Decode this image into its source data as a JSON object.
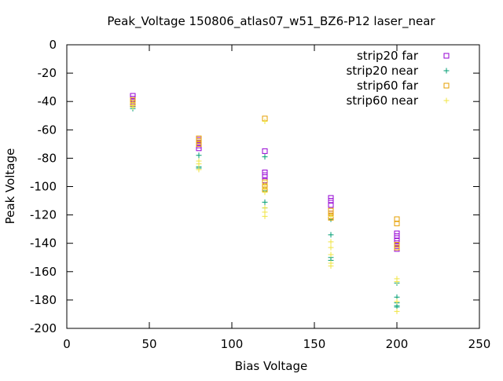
{
  "chart_data": {
    "type": "scatter",
    "title": "Peak_Voltage 150806_atlas07_w51_BZ6-P12 laser_near",
    "xlabel": "Bias Voltage",
    "ylabel": "Peak Voltage",
    "xlim": [
      0,
      250
    ],
    "ylim": [
      -200,
      0
    ],
    "x_ticks": [
      0,
      50,
      100,
      150,
      200,
      250
    ],
    "y_ticks": [
      0,
      -20,
      -40,
      -60,
      -80,
      -100,
      -120,
      -140,
      -160,
      -180,
      -200
    ],
    "grid": false,
    "legend_position": "top-right",
    "series": [
      {
        "name": "strip20 far",
        "marker": "square-icon",
        "color": "#9400d3",
        "points": [
          [
            40,
            -36
          ],
          [
            40,
            -38
          ],
          [
            40,
            -40
          ],
          [
            40,
            -42
          ],
          [
            80,
            -67
          ],
          [
            80,
            -69
          ],
          [
            80,
            -71
          ],
          [
            80,
            -73
          ],
          [
            120,
            -75
          ],
          [
            120,
            -90
          ],
          [
            120,
            -92
          ],
          [
            120,
            -96
          ],
          [
            120,
            -99
          ],
          [
            160,
            -108
          ],
          [
            160,
            -110
          ],
          [
            160,
            -113
          ],
          [
            160,
            -119
          ],
          [
            160,
            -121
          ],
          [
            200,
            -133
          ],
          [
            200,
            -135
          ],
          [
            200,
            -138
          ],
          [
            200,
            -140
          ],
          [
            200,
            -142
          ],
          [
            200,
            -144
          ]
        ]
      },
      {
        "name": "strip20 near",
        "marker": "plus-icon",
        "color": "#009e73",
        "points": [
          [
            40,
            -43
          ],
          [
            40,
            -44
          ],
          [
            40,
            -45
          ],
          [
            80,
            -78
          ],
          [
            80,
            -86
          ],
          [
            80,
            -87
          ],
          [
            120,
            -79
          ],
          [
            120,
            -103
          ],
          [
            120,
            -111
          ],
          [
            120,
            -115
          ],
          [
            160,
            -123
          ],
          [
            160,
            -134
          ],
          [
            160,
            -150
          ],
          [
            160,
            -152
          ],
          [
            200,
            -168
          ],
          [
            200,
            -178
          ],
          [
            200,
            -182
          ],
          [
            200,
            -184
          ],
          [
            200,
            -185
          ]
        ]
      },
      {
        "name": "strip60 far",
        "marker": "square-icon",
        "color": "#e69f00",
        "points": [
          [
            40,
            -39
          ],
          [
            40,
            -41
          ],
          [
            80,
            -66
          ],
          [
            80,
            -68
          ],
          [
            80,
            -70
          ],
          [
            120,
            -52
          ],
          [
            120,
            -97
          ],
          [
            120,
            -100
          ],
          [
            120,
            -102
          ],
          [
            160,
            -117
          ],
          [
            160,
            -119
          ],
          [
            160,
            -121
          ],
          [
            160,
            -122
          ],
          [
            200,
            -123
          ],
          [
            200,
            -126
          ],
          [
            200,
            -141
          ],
          [
            200,
            -143
          ]
        ]
      },
      {
        "name": "strip60 near",
        "marker": "plus-icon",
        "color": "#f0e442",
        "points": [
          [
            40,
            -41
          ],
          [
            40,
            -43
          ],
          [
            40,
            -44
          ],
          [
            80,
            -82
          ],
          [
            80,
            -84
          ],
          [
            80,
            -88
          ],
          [
            120,
            -54
          ],
          [
            120,
            -98
          ],
          [
            120,
            -101
          ],
          [
            120,
            -104
          ],
          [
            120,
            -115
          ],
          [
            120,
            -118
          ],
          [
            120,
            -121
          ],
          [
            160,
            -121
          ],
          [
            160,
            -139
          ],
          [
            160,
            -143
          ],
          [
            160,
            -148
          ],
          [
            160,
            -154
          ],
          [
            160,
            -156
          ],
          [
            200,
            -165
          ],
          [
            200,
            -167
          ],
          [
            200,
            -181
          ],
          [
            200,
            -188
          ]
        ]
      }
    ]
  }
}
